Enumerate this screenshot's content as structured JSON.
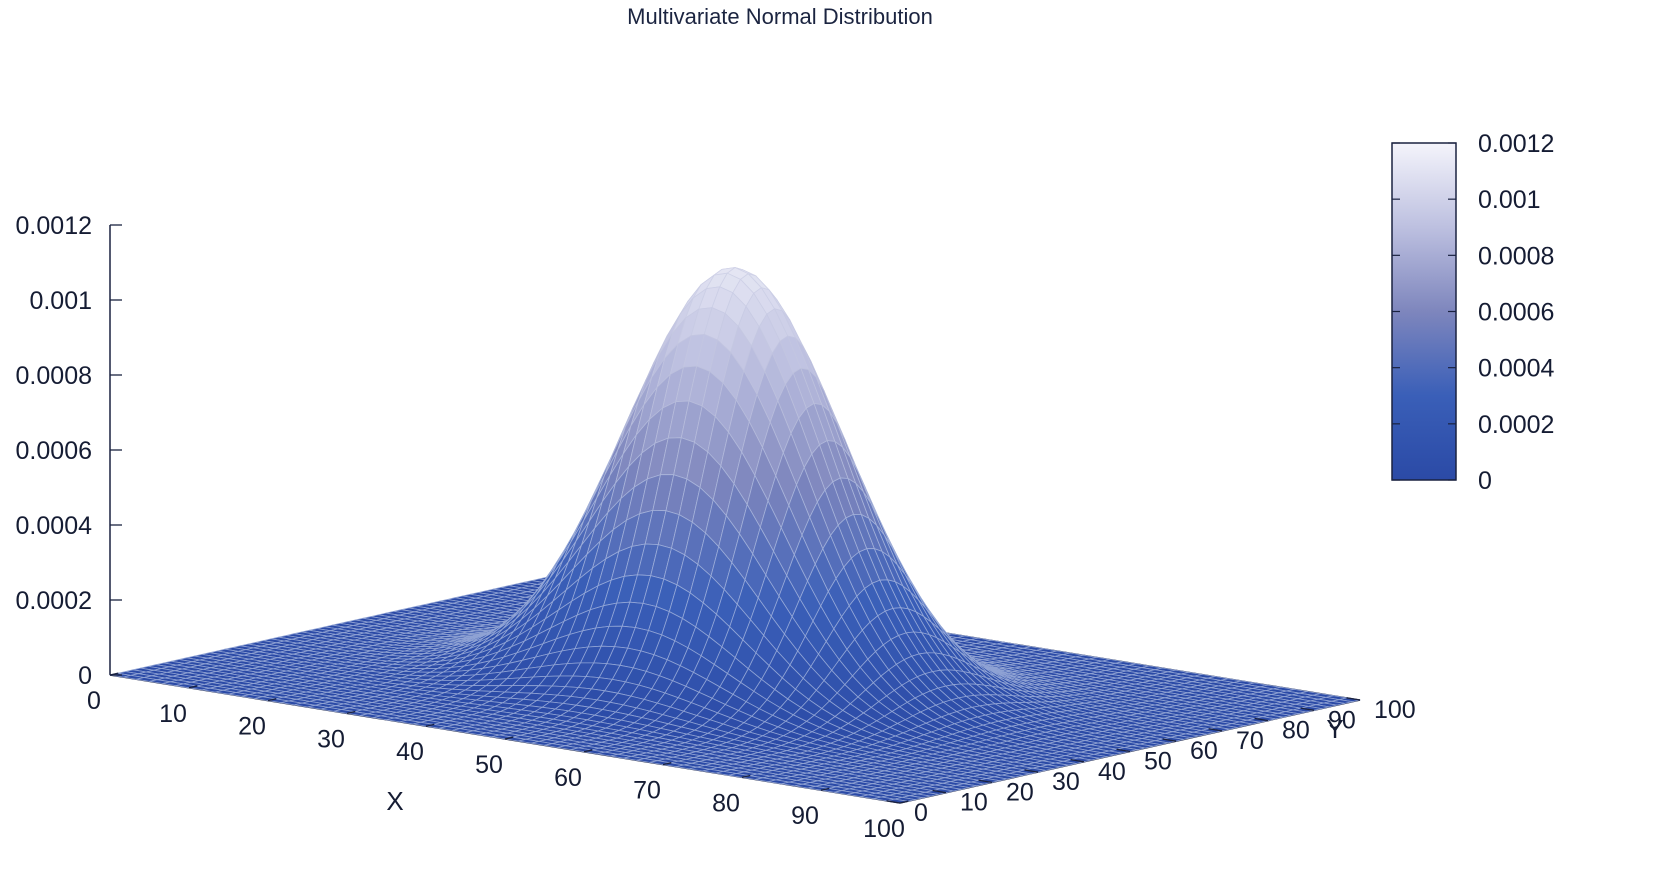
{
  "chart_data": {
    "type": "surface3d",
    "title": "Multivariate Normal Distribution",
    "xlabel": "X",
    "ylabel": "Y",
    "zlabel": "",
    "xlim": [
      0,
      100
    ],
    "ylim": [
      0,
      100
    ],
    "zlim": [
      0,
      0.0012
    ],
    "x_ticks": [
      "0",
      "10",
      "20",
      "30",
      "40",
      "50",
      "60",
      "70",
      "80",
      "90",
      "100"
    ],
    "y_ticks": [
      "0",
      "10",
      "20",
      "30",
      "40",
      "50",
      "60",
      "70",
      "80",
      "90",
      "100"
    ],
    "z_ticks": [
      "0",
      "0.0002",
      "0.0004",
      "0.0006",
      "0.0008",
      "0.001",
      "0.0012"
    ],
    "colorbar": {
      "range": [
        0,
        0.0012
      ],
      "ticks": [
        "0",
        "0.0002",
        "0.0004",
        "0.0006",
        "0.0008",
        "0.001",
        "0.0012"
      ],
      "colors": [
        "#2b4aa6",
        "#3a5fb8",
        "#7e86bd",
        "#bdc0e0",
        "#f4f4fb"
      ]
    },
    "surface": {
      "function": "bivariate normal density",
      "mean": [
        50,
        50
      ],
      "sd": [
        12,
        12
      ],
      "peak": 0.00112
    },
    "grid": false,
    "legend": "colorbar right"
  }
}
